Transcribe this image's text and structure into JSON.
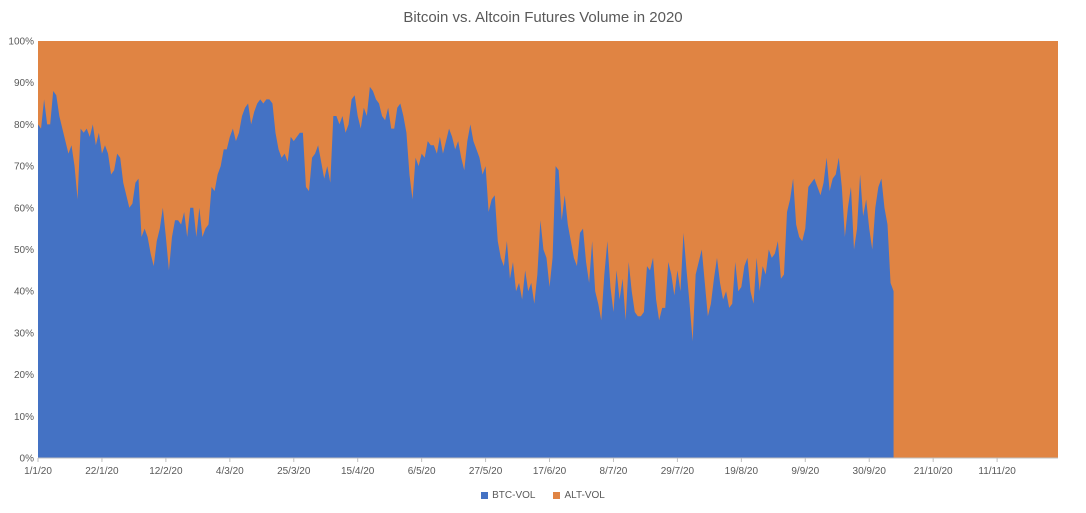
{
  "chart_data": {
    "type": "area",
    "stacked": "percent",
    "title": "Bitcoin vs. Altcoin Futures Volume in 2020",
    "xlabel": "",
    "ylabel": "",
    "ylim": [
      0,
      100
    ],
    "yticks": [
      "0%",
      "10%",
      "20%",
      "30%",
      "40%",
      "50%",
      "60%",
      "70%",
      "80%",
      "90%",
      "100%"
    ],
    "xticks": [
      {
        "label": "1/1/20",
        "day": 0
      },
      {
        "label": "22/1/20",
        "day": 21
      },
      {
        "label": "12/2/20",
        "day": 42
      },
      {
        "label": "4/3/20",
        "day": 63
      },
      {
        "label": "25/3/20",
        "day": 84
      },
      {
        "label": "15/4/20",
        "day": 105
      },
      {
        "label": "6/5/20",
        "day": 126
      },
      {
        "label": "27/5/20",
        "day": 147
      },
      {
        "label": "17/6/20",
        "day": 168
      },
      {
        "label": "8/7/20",
        "day": 189
      },
      {
        "label": "29/7/20",
        "day": 210
      },
      {
        "label": "19/8/20",
        "day": 231
      },
      {
        "label": "9/9/20",
        "day": 252
      },
      {
        "label": "30/9/20",
        "day": 273
      },
      {
        "label": "21/10/20",
        "day": 294
      },
      {
        "label": "11/11/20",
        "day": 315
      }
    ],
    "x_range_days": [
      0,
      335
    ],
    "series": [
      {
        "name": "BTC-VOL",
        "color": "#4472c4",
        "points": [
          [
            0,
            80
          ],
          [
            1,
            79
          ],
          [
            2,
            86
          ],
          [
            3,
            80
          ],
          [
            4,
            80
          ],
          [
            5,
            88
          ],
          [
            6,
            87
          ],
          [
            7,
            82
          ],
          [
            8,
            79
          ],
          [
            9,
            76
          ],
          [
            10,
            73
          ],
          [
            11,
            75
          ],
          [
            12,
            70
          ],
          [
            13,
            62
          ],
          [
            14,
            79
          ],
          [
            15,
            78
          ],
          [
            16,
            79
          ],
          [
            17,
            77
          ],
          [
            18,
            80
          ],
          [
            19,
            75
          ],
          [
            20,
            78
          ],
          [
            21,
            73
          ],
          [
            22,
            75
          ],
          [
            23,
            73
          ],
          [
            24,
            68
          ],
          [
            25,
            69
          ],
          [
            26,
            73
          ],
          [
            27,
            72
          ],
          [
            28,
            66
          ],
          [
            29,
            63
          ],
          [
            30,
            60
          ],
          [
            31,
            61
          ],
          [
            32,
            66
          ],
          [
            33,
            67
          ],
          [
            34,
            53
          ],
          [
            35,
            55
          ],
          [
            36,
            53
          ],
          [
            37,
            49
          ],
          [
            38,
            46
          ],
          [
            39,
            52
          ],
          [
            40,
            55
          ],
          [
            41,
            60
          ],
          [
            42,
            53
          ],
          [
            43,
            45
          ],
          [
            44,
            53
          ],
          [
            45,
            57
          ],
          [
            46,
            57
          ],
          [
            47,
            56
          ],
          [
            48,
            59
          ],
          [
            49,
            53
          ],
          [
            50,
            60
          ],
          [
            51,
            60
          ],
          [
            52,
            53
          ],
          [
            53,
            60
          ],
          [
            54,
            53
          ],
          [
            55,
            55
          ],
          [
            56,
            56
          ],
          [
            57,
            65
          ],
          [
            58,
            64
          ],
          [
            59,
            68
          ],
          [
            60,
            70
          ],
          [
            61,
            74
          ],
          [
            62,
            74
          ],
          [
            63,
            77
          ],
          [
            64,
            79
          ],
          [
            65,
            76
          ],
          [
            66,
            78
          ],
          [
            67,
            82
          ],
          [
            68,
            84
          ],
          [
            69,
            85
          ],
          [
            70,
            80
          ],
          [
            71,
            83
          ],
          [
            72,
            85
          ],
          [
            73,
            86
          ],
          [
            74,
            85
          ],
          [
            75,
            86
          ],
          [
            76,
            86
          ],
          [
            77,
            85
          ],
          [
            78,
            78
          ],
          [
            79,
            74
          ],
          [
            80,
            72
          ],
          [
            81,
            73
          ],
          [
            82,
            71
          ],
          [
            83,
            77
          ],
          [
            84,
            76
          ],
          [
            85,
            77
          ],
          [
            86,
            78
          ],
          [
            87,
            78
          ],
          [
            88,
            65
          ],
          [
            89,
            64
          ],
          [
            90,
            72
          ],
          [
            91,
            73
          ],
          [
            92,
            75
          ],
          [
            93,
            71
          ],
          [
            94,
            67
          ],
          [
            95,
            70
          ],
          [
            96,
            66
          ],
          [
            97,
            82
          ],
          [
            98,
            82
          ],
          [
            99,
            80
          ],
          [
            100,
            82
          ],
          [
            101,
            78
          ],
          [
            102,
            80
          ],
          [
            103,
            86
          ],
          [
            104,
            87
          ],
          [
            105,
            82
          ],
          [
            106,
            79
          ],
          [
            107,
            84
          ],
          [
            108,
            82
          ],
          [
            109,
            89
          ],
          [
            110,
            88
          ],
          [
            111,
            86
          ],
          [
            112,
            85
          ],
          [
            113,
            82
          ],
          [
            114,
            81
          ],
          [
            115,
            84
          ],
          [
            116,
            79
          ],
          [
            117,
            79
          ],
          [
            118,
            84
          ],
          [
            119,
            85
          ],
          [
            120,
            82
          ],
          [
            121,
            78
          ],
          [
            122,
            68
          ],
          [
            123,
            62
          ],
          [
            124,
            72
          ],
          [
            125,
            70
          ],
          [
            126,
            73
          ],
          [
            127,
            72
          ],
          [
            128,
            76
          ],
          [
            129,
            75
          ],
          [
            130,
            75
          ],
          [
            131,
            73
          ],
          [
            132,
            77
          ],
          [
            133,
            73
          ],
          [
            134,
            76
          ],
          [
            135,
            79
          ],
          [
            136,
            77
          ],
          [
            137,
            74
          ],
          [
            138,
            76
          ],
          [
            139,
            72
          ],
          [
            140,
            69
          ],
          [
            141,
            76
          ],
          [
            142,
            80
          ],
          [
            143,
            76
          ],
          [
            144,
            74
          ],
          [
            145,
            72
          ],
          [
            146,
            68
          ],
          [
            147,
            70
          ],
          [
            148,
            59
          ],
          [
            149,
            62
          ],
          [
            150,
            63
          ],
          [
            151,
            52
          ],
          [
            152,
            48
          ],
          [
            153,
            46
          ],
          [
            154,
            52
          ],
          [
            155,
            43
          ],
          [
            156,
            47
          ],
          [
            157,
            40
          ],
          [
            158,
            42
          ],
          [
            159,
            38
          ],
          [
            160,
            45
          ],
          [
            161,
            40
          ],
          [
            162,
            42
          ],
          [
            163,
            37
          ],
          [
            164,
            44
          ],
          [
            165,
            57
          ],
          [
            166,
            50
          ],
          [
            167,
            48
          ],
          [
            168,
            41
          ],
          [
            169,
            48
          ],
          [
            170,
            70
          ],
          [
            171,
            69
          ],
          [
            172,
            57
          ],
          [
            173,
            63
          ],
          [
            174,
            56
          ],
          [
            175,
            52
          ],
          [
            176,
            48
          ],
          [
            177,
            46
          ],
          [
            178,
            54
          ],
          [
            179,
            55
          ],
          [
            180,
            47
          ],
          [
            181,
            42
          ],
          [
            182,
            52
          ],
          [
            183,
            40
          ],
          [
            184,
            37
          ],
          [
            185,
            33
          ],
          [
            186,
            44
          ],
          [
            187,
            52
          ],
          [
            188,
            41
          ],
          [
            189,
            35
          ],
          [
            190,
            45
          ],
          [
            191,
            38
          ],
          [
            192,
            43
          ],
          [
            193,
            33
          ],
          [
            194,
            47
          ],
          [
            195,
            40
          ],
          [
            196,
            35
          ],
          [
            197,
            34
          ],
          [
            198,
            34
          ],
          [
            199,
            35
          ],
          [
            200,
            46
          ],
          [
            201,
            45
          ],
          [
            202,
            48
          ],
          [
            203,
            38
          ],
          [
            204,
            33
          ],
          [
            205,
            36
          ],
          [
            206,
            36
          ],
          [
            207,
            47
          ],
          [
            208,
            44
          ],
          [
            209,
            39
          ],
          [
            210,
            45
          ],
          [
            211,
            40
          ],
          [
            212,
            54
          ],
          [
            213,
            45
          ],
          [
            214,
            37
          ],
          [
            215,
            28
          ],
          [
            216,
            44
          ],
          [
            217,
            47
          ],
          [
            218,
            50
          ],
          [
            219,
            42
          ],
          [
            220,
            34
          ],
          [
            221,
            37
          ],
          [
            222,
            43
          ],
          [
            223,
            48
          ],
          [
            224,
            42
          ],
          [
            225,
            38
          ],
          [
            226,
            40
          ],
          [
            227,
            36
          ],
          [
            228,
            37
          ],
          [
            229,
            47
          ],
          [
            230,
            40
          ],
          [
            231,
            41
          ],
          [
            232,
            46
          ],
          [
            233,
            48
          ],
          [
            234,
            40
          ],
          [
            235,
            37
          ],
          [
            236,
            48
          ],
          [
            237,
            40
          ],
          [
            238,
            46
          ],
          [
            239,
            44
          ],
          [
            240,
            50
          ],
          [
            241,
            48
          ],
          [
            242,
            49
          ],
          [
            243,
            52
          ],
          [
            244,
            43
          ],
          [
            245,
            44
          ],
          [
            246,
            59
          ],
          [
            247,
            62
          ],
          [
            248,
            67
          ],
          [
            249,
            56
          ],
          [
            250,
            53
          ],
          [
            251,
            52
          ],
          [
            252,
            55
          ],
          [
            253,
            65
          ],
          [
            254,
            66
          ],
          [
            255,
            67
          ],
          [
            256,
            65
          ],
          [
            257,
            63
          ],
          [
            258,
            66
          ],
          [
            259,
            72
          ],
          [
            260,
            64
          ],
          [
            261,
            67
          ],
          [
            262,
            68
          ],
          [
            263,
            72
          ],
          [
            264,
            65
          ],
          [
            265,
            53
          ],
          [
            266,
            60
          ],
          [
            267,
            65
          ],
          [
            268,
            50
          ],
          [
            269,
            55
          ],
          [
            270,
            68
          ],
          [
            271,
            58
          ],
          [
            272,
            62
          ],
          [
            273,
            55
          ],
          [
            274,
            50
          ],
          [
            275,
            60
          ],
          [
            276,
            65
          ],
          [
            277,
            67
          ],
          [
            278,
            60
          ],
          [
            279,
            56
          ],
          [
            280,
            42
          ],
          [
            281,
            40
          ]
        ]
      },
      {
        "name": "ALT-VOL",
        "color": "#e08443",
        "complement_of": "BTC-VOL"
      }
    ]
  }
}
